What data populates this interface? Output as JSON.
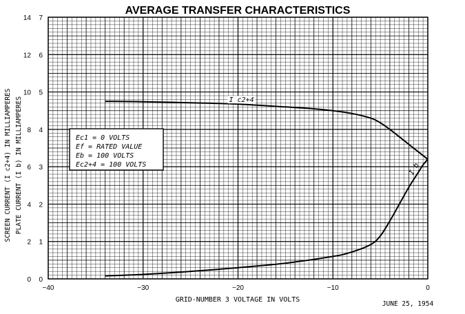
{
  "chart_data": {
    "type": "line",
    "title": "AVERAGE TRANSFER CHARACTERISTICS",
    "xlabel": "GRID-NUMBER 3 VOLTAGE IN VOLTS",
    "ylabel_outer": "SCREEN CURRENT (I c2+4) IN MILLIAMPERES",
    "ylabel_inner": "PLATE CURRENT (I b) IN MILLIAMPERES",
    "xlim": [
      -40,
      0
    ],
    "ylim_outer": [
      0,
      14
    ],
    "ylim_inner": [
      0,
      7
    ],
    "x_ticks": [
      "-40",
      "-30",
      "-20",
      "-10",
      "0"
    ],
    "y_ticks_outer": [
      "0",
      "2",
      "4",
      "6",
      "8",
      "10",
      "12",
      "14"
    ],
    "y_ticks_inner": [
      "0",
      "1",
      "2",
      "3",
      "4",
      "5",
      "6",
      "7"
    ],
    "grid": true,
    "series": [
      {
        "name": "Ic2+4",
        "label": "I c2+4",
        "axis": "screen",
        "x": [
          -34,
          -30,
          -25,
          -20,
          -15,
          -12,
          -10,
          -8,
          -6,
          -5,
          -4,
          -3,
          -2,
          -1,
          0
        ],
        "y": [
          9.5,
          9.48,
          9.42,
          9.35,
          9.2,
          9.1,
          9.0,
          8.85,
          8.6,
          8.35,
          8.0,
          7.6,
          7.2,
          6.8,
          6.4
        ]
      },
      {
        "name": "Ib",
        "label": "I b",
        "axis": "plate",
        "x": [
          -34,
          -30,
          -25,
          -20,
          -15,
          -10,
          -8,
          -6,
          -5,
          -4,
          -3,
          -2,
          -1,
          -0.5,
          0
        ],
        "y": [
          0.08,
          0.12,
          0.2,
          0.3,
          0.42,
          0.6,
          0.72,
          0.92,
          1.15,
          1.55,
          2.0,
          2.45,
          2.85,
          3.05,
          3.2
        ]
      }
    ]
  },
  "conditions": {
    "line1": "Ec1 = 0 VOLTS",
    "line2": "Ef = RATED VALUE",
    "line3": "Eb = 100 VOLTS",
    "line4": "Ec2+4 = 100 VOLTS"
  },
  "date": "JUNE 25, 1954"
}
